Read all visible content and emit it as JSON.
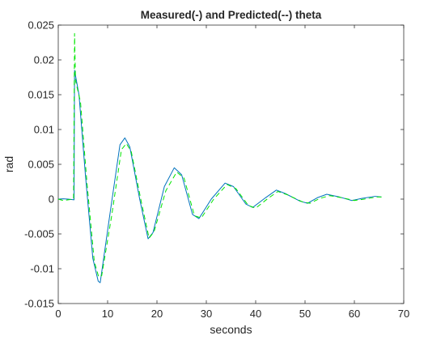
{
  "chart_data": {
    "type": "line",
    "title": "Measured(-) and Predicted(--) theta",
    "xlabel": "seconds",
    "ylabel": "rad",
    "xlim": [
      0,
      70
    ],
    "ylim": [
      -0.015,
      0.025
    ],
    "xticks": [
      0,
      10,
      20,
      30,
      40,
      50,
      60,
      70
    ],
    "yticks": [
      -0.015,
      -0.01,
      -0.005,
      0,
      0.005,
      0.01,
      0.015,
      0.02,
      0.025
    ],
    "xtick_labels": [
      "0",
      "10",
      "20",
      "30",
      "40",
      "50",
      "60",
      "70"
    ],
    "ytick_labels": [
      "-0.015",
      "-0.01",
      "-0.005",
      "0",
      "0.005",
      "0.01",
      "0.015",
      "0.02",
      "0.025"
    ],
    "grid": false,
    "series": [
      {
        "style": "solid",
        "color": "#0072bd",
        "x": [
          0,
          1,
          2,
          3.2,
          3.3,
          4.2,
          5.5,
          7,
          8.1,
          8.5,
          10.5,
          12.5,
          13.5,
          14.5,
          16.5,
          18.2,
          19.2,
          21.5,
          23.5,
          25,
          27.2,
          28.5,
          31,
          33.8,
          35.5,
          38,
          39.4,
          42,
          44.2,
          46,
          49,
          50.5,
          52.5,
          54.4,
          57,
          59.5,
          61.5,
          64.2,
          65.5
        ],
        "y": [
          0,
          5e-05,
          0,
          -0.0001,
          0.0185,
          0.015,
          0.0035,
          -0.0085,
          -0.0118,
          -0.012,
          -0.002,
          0.0078,
          0.0088,
          0.0075,
          0,
          -0.0057,
          -0.0048,
          0.0018,
          0.0045,
          0.0035,
          -0.0022,
          -0.0028,
          0,
          0.0023,
          0.0018,
          -0.0007,
          -0.0012,
          0.0002,
          0.0013,
          0.0008,
          -0.0003,
          -0.0006,
          0.0002,
          0.0007,
          0.0003,
          -0.0002,
          0.0001,
          0.0004,
          0.0003
        ]
      },
      {
        "style": "dashed",
        "color": "#00e600",
        "x": [
          0,
          1,
          2,
          3.1,
          3.3,
          3.5,
          4.5,
          5.8,
          7.3,
          8.2,
          8.8,
          10.8,
          12.8,
          13.8,
          14.8,
          16.8,
          18.4,
          19.4,
          21.8,
          24,
          25.5,
          27.6,
          29,
          31.5,
          34.2,
          36,
          38.5,
          40,
          42.5,
          44.5,
          46.5,
          49.5,
          51,
          53,
          55,
          57.5,
          60,
          62,
          64.5,
          65.5
        ],
        "y": [
          0,
          -0.0002,
          -0.0001,
          0,
          0.0238,
          0.017,
          0.014,
          0.0025,
          -0.009,
          -0.0112,
          -0.011,
          -0.0025,
          0.0071,
          0.008,
          0.0068,
          -0.0003,
          -0.0056,
          -0.0047,
          0.0012,
          0.0039,
          0.003,
          -0.0024,
          -0.0027,
          0,
          0.0021,
          0.0015,
          -0.0009,
          -0.0013,
          0.0001,
          0.0011,
          0.0006,
          -0.0004,
          -0.0006,
          0.0001,
          0.0005,
          0.0002,
          -0.0002,
          0,
          0.0003,
          0.0003
        ]
      }
    ]
  }
}
